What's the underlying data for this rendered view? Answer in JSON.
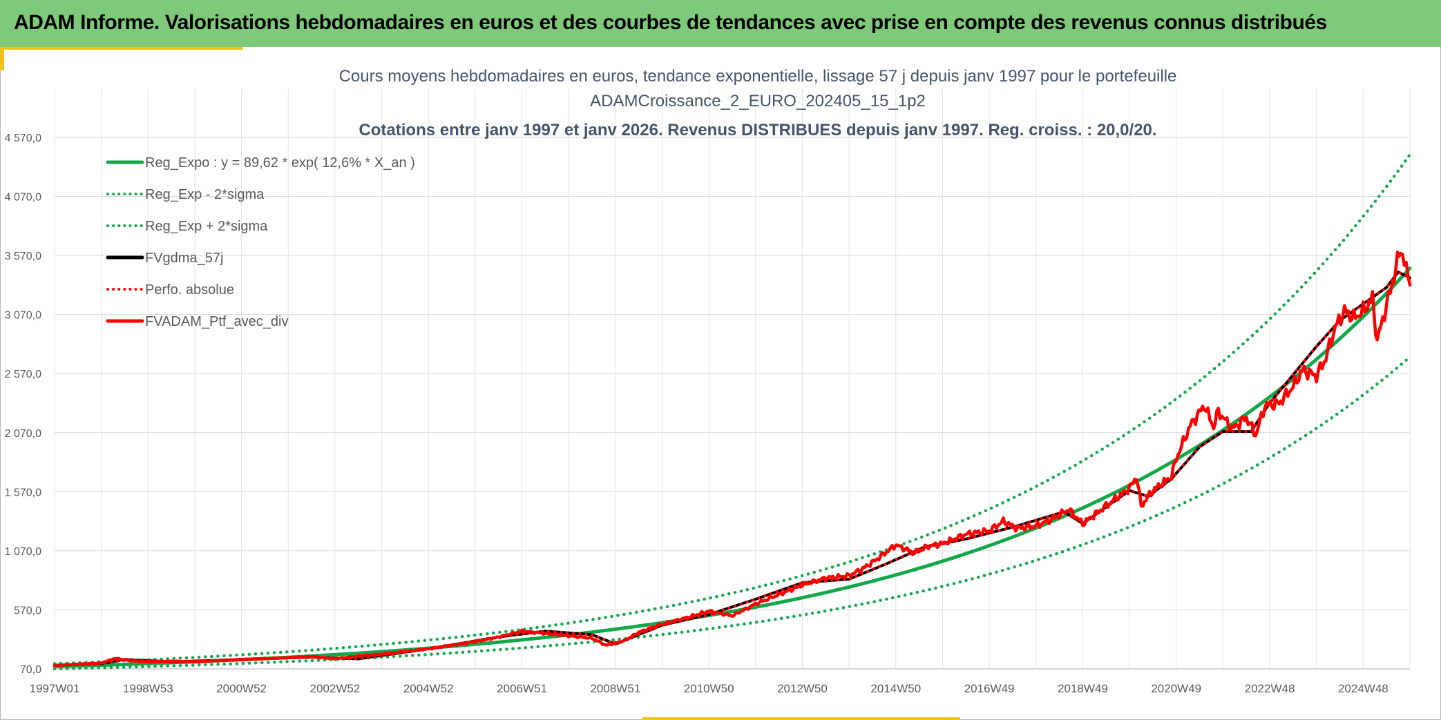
{
  "banner": {
    "title": "ADAM Informe. Valorisations hebdomadaires en euros et des courbes de tendances avec prise en compte des revenus connus distribués"
  },
  "colors": {
    "banner": "#7fc97a",
    "accent": "#f3c21a",
    "green": "#12a84a",
    "red": "#ff0000",
    "black": "#000000",
    "grid": "#d9d9d9"
  },
  "chart_data": {
    "type": "line",
    "title": "Cours moyens hebdomadaires en euros, tendance exponentielle, lissage 57 j depuis janv 1997 pour le portefeuille",
    "subtitle": "ADAMCroissance_2_EURO_202405_15_1p2",
    "subtitle2": "Cotations entre janv 1997 et janv 2026. Revenus DISTRIBUES depuis janv 1997. Reg. croiss. : 20,0/20.",
    "xlabel": "",
    "ylabel": "",
    "ylim": [
      70,
      4570
    ],
    "xlim": [
      1997.0,
      2026.0
    ],
    "x_scale": "year",
    "y_ticks": [
      "70,0",
      "570,0",
      "1 070,0",
      "1 570,0",
      "2 070,0",
      "2 570,0",
      "3 070,0",
      "3 570,0",
      "4 070,0",
      "4 570,0"
    ],
    "y_tick_values": [
      70,
      570,
      1070,
      1570,
      2070,
      2570,
      3070,
      3570,
      4070,
      4570
    ],
    "x_tick_labels": [
      "1997W01",
      "1998W53",
      "2000W52",
      "2002W52",
      "2004W52",
      "2006W51",
      "2008W51",
      "2010W50",
      "2012W50",
      "2014W50",
      "2016W49",
      "2018W49",
      "2020W49",
      "2022W48",
      "2024W48"
    ],
    "x_tick_values": [
      1997.0,
      1999.0,
      2001.0,
      2003.0,
      2005.0,
      2007.0,
      2009.0,
      2011.0,
      2013.0,
      2015.0,
      2017.0,
      2019.0,
      2021.0,
      2023.0,
      2025.0
    ],
    "grid": true,
    "legend_position": "top-left",
    "series": [
      {
        "name": "Reg_Expo : y = 89,62 * exp( 12,6% *  X_an )",
        "color": "#12a84a",
        "style": "solid",
        "formula": {
          "a": 89.62,
          "rate": 0.126,
          "factor": 1.0
        }
      },
      {
        "name": "Reg_Exp - 2*sigma",
        "color": "#12a84a",
        "style": "dotted",
        "formula": {
          "a": 89.62,
          "rate": 0.126,
          "factor": 0.783
        }
      },
      {
        "name": "Reg_Exp + 2*sigma",
        "color": "#12a84a",
        "style": "dotted",
        "formula": {
          "a": 89.62,
          "rate": 0.126,
          "factor": 1.278
        }
      },
      {
        "name": "FVgdma_57j",
        "color": "#000000",
        "style": "solid",
        "x": [
          1997.0,
          1998.0,
          1998.5,
          1999.5,
          2001.0,
          2002.5,
          2003.5,
          2005.0,
          2006.5,
          2007.5,
          2008.5,
          2009.0,
          2010.0,
          2011.0,
          2012.0,
          2013.0,
          2014.0,
          2014.8,
          2015.6,
          2016.5,
          2017.5,
          2018.6,
          2019.0,
          2020.0,
          2020.4,
          2020.9,
          2021.5,
          2022.0,
          2022.6,
          2023.0,
          2023.5,
          2024.0,
          2024.5,
          2025.0,
          2025.5,
          2025.75,
          2026.0
        ],
        "values": [
          100,
          115,
          150,
          130,
          150,
          170,
          155,
          240,
          340,
          390,
          360,
          280,
          440,
          530,
          660,
          800,
          830,
          960,
          1100,
          1170,
          1270,
          1400,
          1300,
          1580,
          1530,
          1680,
          1950,
          2080,
          2080,
          2320,
          2560,
          2800,
          3020,
          3160,
          3300,
          3430,
          3380
        ]
      },
      {
        "name": "Perfo. absolue",
        "color": "#ff0000",
        "style": "dotted",
        "x": [
          1997.0,
          1998.0,
          1998.5,
          1999.5,
          2001.0,
          2002.5,
          2003.5,
          2005.0,
          2006.5,
          2007.5,
          2008.5,
          2009.0,
          2010.0,
          2011.0,
          2012.0,
          2013.0,
          2014.0,
          2014.8,
          2015.6,
          2016.5,
          2017.5,
          2018.6,
          2019.0,
          2020.0,
          2020.4,
          2020.9,
          2021.5,
          2022.0,
          2022.6,
          2023.0,
          2023.5,
          2024.0,
          2024.5,
          2025.0,
          2025.5,
          2025.75,
          2026.0
        ],
        "values": [
          100,
          115,
          150,
          130,
          150,
          170,
          155,
          240,
          340,
          390,
          360,
          280,
          440,
          530,
          660,
          800,
          830,
          960,
          1100,
          1170,
          1270,
          1400,
          1300,
          1580,
          1530,
          1680,
          1950,
          2080,
          2080,
          2320,
          2560,
          2800,
          3020,
          3160,
          3300,
          3430,
          3380
        ]
      },
      {
        "name": "FVADAM_Ptf_avec_div",
        "color": "#ff0000",
        "style": "solid",
        "x": [
          1997.0,
          1997.5,
          1998.0,
          1998.3,
          1998.6,
          1999.0,
          1999.5,
          2000.0,
          2001.0,
          2002.0,
          2002.5,
          2003.0,
          2003.5,
          2004.0,
          2005.0,
          2006.0,
          2006.5,
          2007.0,
          2007.5,
          2008.0,
          2008.5,
          2008.8,
          2009.2,
          2009.5,
          2010.0,
          2010.5,
          2011.0,
          2011.5,
          2012.0,
          2012.5,
          2013.0,
          2013.5,
          2014.0,
          2014.3,
          2014.6,
          2015.0,
          2015.4,
          2015.7,
          2016.0,
          2016.5,
          2017.0,
          2017.3,
          2017.6,
          2018.0,
          2018.4,
          2018.7,
          2019.0,
          2019.5,
          2020.0,
          2020.15,
          2020.25,
          2020.5,
          2020.9,
          2021.0,
          2021.3,
          2021.6,
          2021.8,
          2021.9,
          2022.2,
          2022.5,
          2022.7,
          2022.9,
          2023.2,
          2023.5,
          2023.7,
          2024.0,
          2024.2,
          2024.4,
          2024.6,
          2024.8,
          2025.0,
          2025.2,
          2025.3,
          2025.5,
          2025.7,
          2025.8,
          2026.0
        ],
        "values": [
          100,
          110,
          120,
          160,
          140,
          130,
          135,
          130,
          150,
          165,
          175,
          155,
          180,
          195,
          240,
          300,
          340,
          390,
          370,
          350,
          330,
          270,
          310,
          380,
          450,
          500,
          560,
          520,
          620,
          700,
          780,
          840,
          860,
          920,
          1000,
          1120,
          1050,
          1110,
          1130,
          1210,
          1240,
          1320,
          1260,
          1280,
          1350,
          1420,
          1300,
          1450,
          1600,
          1700,
          1450,
          1580,
          1700,
          1850,
          2130,
          2300,
          2120,
          2250,
          2100,
          2200,
          2050,
          2300,
          2320,
          2460,
          2600,
          2550,
          2700,
          2960,
          3100,
          3040,
          3100,
          3200,
          2850,
          3150,
          3450,
          3640,
          3320
        ]
      }
    ]
  }
}
